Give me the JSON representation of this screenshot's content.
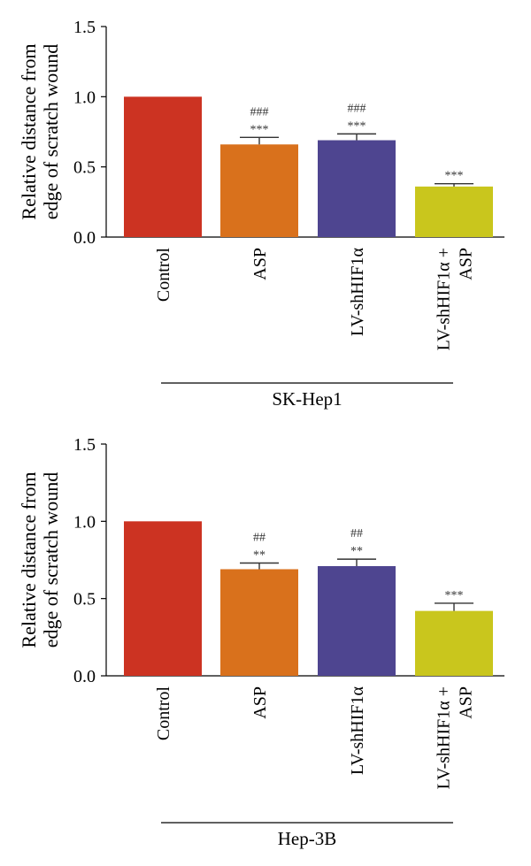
{
  "chart_data": [
    {
      "type": "bar",
      "ylabel": [
        "Relative distance from",
        "edge of scratch wound"
      ],
      "ylim": [
        0,
        1.5
      ],
      "yticks": [
        "0.0",
        "0.5",
        "1.0",
        "1.5"
      ],
      "categories": [
        [
          "Control"
        ],
        [
          "ASP"
        ],
        [
          "LV-shHIF1α"
        ],
        [
          "LV-shHIF1α +",
          "ASP"
        ]
      ],
      "values": [
        1.0,
        0.66,
        0.69,
        0.36
      ],
      "errors": [
        0,
        0.05,
        0.045,
        0.02
      ],
      "colors": [
        "#cc3322",
        "#d9711c",
        "#4e4590",
        "#c9c61d"
      ],
      "sig_top": [
        "",
        "###",
        "###",
        ""
      ],
      "sig_bottom": [
        "",
        "***",
        "***",
        "***"
      ],
      "group_label": "SK-Hep1"
    },
    {
      "type": "bar",
      "ylabel": [
        "Relative distance from",
        "edge of scratch wound"
      ],
      "ylim": [
        0,
        1.5
      ],
      "yticks": [
        "0.0",
        "0.5",
        "1.0",
        "1.5"
      ],
      "categories": [
        [
          "Control"
        ],
        [
          "ASP"
        ],
        [
          "LV-shHIF1α"
        ],
        [
          "LV-shHIF1α +",
          "ASP"
        ]
      ],
      "values": [
        1.0,
        0.69,
        0.71,
        0.42
      ],
      "errors": [
        0,
        0.04,
        0.045,
        0.05
      ],
      "colors": [
        "#cc3322",
        "#d9711c",
        "#4e4590",
        "#c9c61d"
      ],
      "sig_top": [
        "",
        "##",
        "##",
        ""
      ],
      "sig_bottom": [
        "",
        "**",
        "**",
        "***"
      ],
      "group_label": "Hep-3B"
    }
  ]
}
